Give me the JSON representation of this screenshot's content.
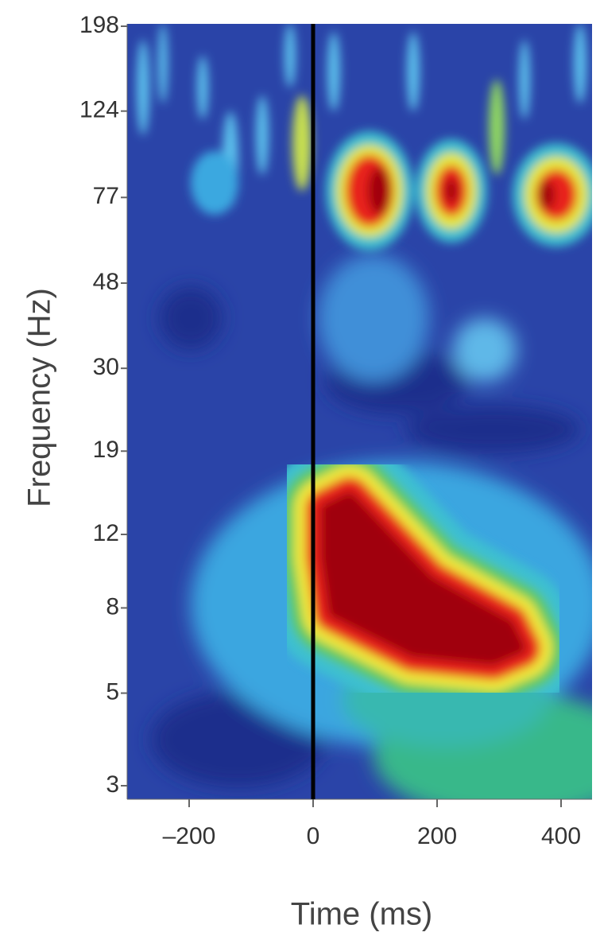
{
  "chart_data": {
    "type": "spectrogram",
    "x_label": "Time (ms)",
    "y_label": "Frequency (Hz)",
    "xlim": [
      -300,
      450
    ],
    "xticks": [
      {
        "value": -200,
        "label": "–200"
      },
      0,
      200,
      400
    ],
    "ylim": [
      3,
      198
    ],
    "y_scale": "log",
    "yticks": [
      3,
      5,
      8,
      12,
      19,
      30,
      48,
      77,
      124,
      198
    ],
    "vline": 0
  }
}
